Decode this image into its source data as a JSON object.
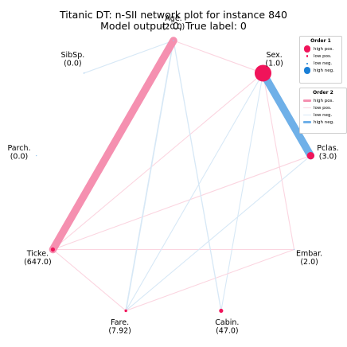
{
  "title_line1": "Titanic DT: n-SII network plot for instance 840",
  "title_line2": "Model output: 0, True label: 0",
  "colors": {
    "high_pos": "#f0145a",
    "pos_edge": "#f590b0",
    "low_pos_edge": "#fbd5e0",
    "high_neg": "#6fb0e8",
    "low_neg_edge": "#d7e8f6"
  },
  "nodes": [
    {
      "id": "age",
      "name": "Age.",
      "value": "(20.0)",
      "order1": 0.0
    },
    {
      "id": "sex",
      "name": "Sex.",
      "value": "(1.0)",
      "order1": 1.0
    },
    {
      "id": "pclass",
      "name": "Pclas.",
      "value": "(3.0)",
      "order1": 0.35
    },
    {
      "id": "embarked",
      "name": "Embar.",
      "value": "(2.0)",
      "order1": 0.0
    },
    {
      "id": "cabin",
      "name": "Cabin.",
      "value": "(47.0)",
      "order1": 0.12
    },
    {
      "id": "fare",
      "name": "Fare.",
      "value": "(7.92)",
      "order1": 0.02
    },
    {
      "id": "ticket",
      "name": "Ticke.",
      "value": "(647.0)",
      "order1": 0.12
    },
    {
      "id": "parch",
      "name": "Parch.",
      "value": "(0.0)",
      "order1": 0.0
    },
    {
      "id": "sibsp",
      "name": "SibSp.",
      "value": "(0.0)",
      "order1": 0.0
    }
  ],
  "edges": [
    {
      "a": "age",
      "b": "ticket",
      "value": 1.0
    },
    {
      "a": "sex",
      "b": "pclass",
      "value": -1.0
    },
    {
      "a": "age",
      "b": "fare",
      "value": -0.18
    },
    {
      "a": "age",
      "b": "cabin",
      "value": -0.14
    },
    {
      "a": "age",
      "b": "sex",
      "value": 0.06
    },
    {
      "a": "age",
      "b": "sibsp",
      "value": -0.05
    },
    {
      "a": "ticket",
      "b": "fare",
      "value": 0.12
    },
    {
      "a": "ticket",
      "b": "sex",
      "value": 0.05
    },
    {
      "a": "ticket",
      "b": "pclass",
      "value": 0.05
    },
    {
      "a": "ticket",
      "b": "embarked",
      "value": 0.04
    },
    {
      "a": "fare",
      "b": "embarked",
      "value": 0.07
    },
    {
      "a": "fare",
      "b": "sex",
      "value": -0.1
    },
    {
      "a": "fare",
      "b": "pclass",
      "value": -0.04
    },
    {
      "a": "sex",
      "b": "embarked",
      "value": 0.04
    },
    {
      "a": "cabin",
      "b": "sex",
      "value": -0.03
    }
  ],
  "legend": {
    "order1": {
      "title": "Order 1",
      "items": [
        {
          "label": "high pos.",
          "color": "#f0145a",
          "size": 4.2
        },
        {
          "label": "low pos.",
          "color": "#f0145a",
          "size": 1.4
        },
        {
          "label": "low neg.",
          "color": "#1a7fd6",
          "size": 1.0
        },
        {
          "label": "high neg.",
          "color": "#1a7fd6",
          "size": 4.2
        }
      ]
    },
    "order2": {
      "title": "Order 2",
      "items": [
        {
          "label": "high pos.",
          "color": "#f58fb0",
          "width": 3.5
        },
        {
          "label": "low pos.",
          "color": "#fbd5e0",
          "width": 1.0
        },
        {
          "label": "low neg.",
          "color": "#d7e8f6",
          "width": 1.0
        },
        {
          "label": "high neg.",
          "color": "#6fb0e8",
          "width": 3.5
        }
      ]
    }
  }
}
